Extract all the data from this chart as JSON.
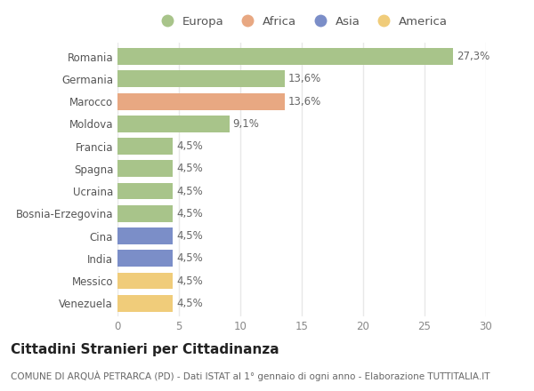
{
  "categories": [
    "Romania",
    "Germania",
    "Marocco",
    "Moldova",
    "Francia",
    "Spagna",
    "Ucraina",
    "Bosnia-Erzegovina",
    "Cina",
    "India",
    "Messico",
    "Venezuela"
  ],
  "values": [
    27.3,
    13.6,
    13.6,
    9.1,
    4.5,
    4.5,
    4.5,
    4.5,
    4.5,
    4.5,
    4.5,
    4.5
  ],
  "labels": [
    "27,3%",
    "13,6%",
    "13,6%",
    "9,1%",
    "4,5%",
    "4,5%",
    "4,5%",
    "4,5%",
    "4,5%",
    "4,5%",
    "4,5%",
    "4,5%"
  ],
  "colors": [
    "#a8c48a",
    "#a8c48a",
    "#e8a882",
    "#a8c48a",
    "#a8c48a",
    "#a8c48a",
    "#a8c48a",
    "#a8c48a",
    "#7b8ec8",
    "#7b8ec8",
    "#f0cc7a",
    "#f0cc7a"
  ],
  "legend_labels": [
    "Europa",
    "Africa",
    "Asia",
    "America"
  ],
  "legend_colors": [
    "#a8c48a",
    "#e8a882",
    "#7b8ec8",
    "#f0cc7a"
  ],
  "title": "Cittadini Stranieri per Cittadinanza",
  "subtitle": "COMUNE DI ARQUÀ PETRARCA (PD) - Dati ISTAT al 1° gennaio di ogni anno - Elaborazione TUTTITALIA.IT",
  "xlim": [
    0,
    30
  ],
  "xticks": [
    0,
    5,
    10,
    15,
    20,
    25,
    30
  ],
  "background_color": "#ffffff",
  "grid_color": "#e8e8e8",
  "bar_height": 0.75,
  "title_fontsize": 11,
  "subtitle_fontsize": 7.5,
  "label_fontsize": 8.5,
  "tick_fontsize": 8.5,
  "legend_fontsize": 9.5
}
